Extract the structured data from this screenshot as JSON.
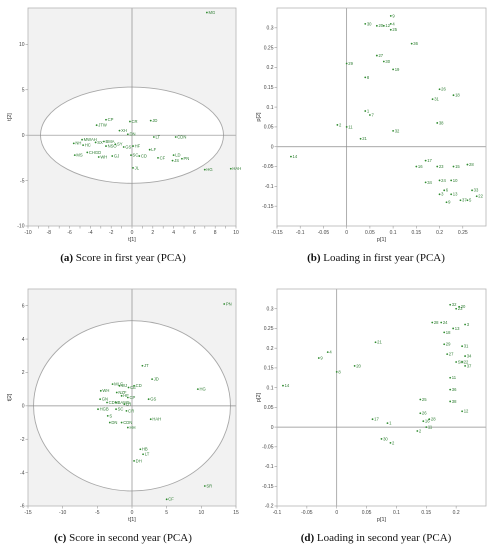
{
  "colors": {
    "point": "#2e8b2e",
    "label": "#2e7d32",
    "score_bg": "#f2f2f2",
    "ellipse_fill": "#ffffff",
    "ellipse_stroke": "#a8a8a8",
    "zero_line": "#8c8c8c",
    "frame": "#b5b5b5"
  },
  "captions": [
    {
      "letter": "(a)",
      "text": "Score in first year (PCA)"
    },
    {
      "letter": "(b)",
      "text": "Loading in first year (PCA)"
    },
    {
      "letter": "(c)",
      "text": "Score in second year (PCA)"
    },
    {
      "letter": "(d)",
      "text": "Loading in second year (PCA)"
    }
  ],
  "chart_data": [
    {
      "type": "scatter",
      "title": "",
      "xlabel": "t[1]",
      "ylabel": "t[2]",
      "xlim": [
        -10,
        10
      ],
      "ylim": [
        -10,
        14
      ],
      "xticks": [
        -10,
        -9,
        -8,
        -7,
        -6,
        -5,
        -4,
        -3,
        -2,
        -1,
        0,
        1,
        2,
        3,
        4,
        5,
        6,
        7,
        8,
        9,
        10
      ],
      "xtick_labels": [
        "-10",
        "",
        "-8",
        "",
        "-6",
        "",
        "-4",
        "",
        "-2",
        "",
        "0",
        "",
        "2",
        "",
        "4",
        "",
        "6",
        "",
        "8",
        "",
        "10"
      ],
      "yticks": [
        -10,
        -5,
        0,
        5,
        10
      ],
      "ellipse": {
        "cx": 0,
        "cy": 0,
        "rx": 8.8,
        "ry": 5.3
      },
      "shaded_background": true,
      "points": [
        {
          "x": 7.2,
          "y": 13.5,
          "label": "MG"
        },
        {
          "x": -2.5,
          "y": 1.7,
          "label": "CP"
        },
        {
          "x": -0.2,
          "y": 1.5,
          "label": "CR"
        },
        {
          "x": 1.8,
          "y": 1.6,
          "label": "JD"
        },
        {
          "x": -3.4,
          "y": 1.1,
          "label": "JTW"
        },
        {
          "x": -1.2,
          "y": 0.5,
          "label": "XH"
        },
        {
          "x": -0.4,
          "y": 0.1,
          "label": "DN"
        },
        {
          "x": -4.8,
          "y": -0.5,
          "label": "MWAH"
        },
        {
          "x": -5.6,
          "y": -0.9,
          "label": "NH"
        },
        {
          "x": -4.7,
          "y": -1.1,
          "label": "HC"
        },
        {
          "x": -3.5,
          "y": -0.8,
          "label": "SX"
        },
        {
          "x": -2.7,
          "y": -0.7,
          "label": "BMA"
        },
        {
          "x": -2.5,
          "y": -1.2,
          "label": "NSO"
        },
        {
          "x": -1.6,
          "y": -1.0,
          "label": "SY"
        },
        {
          "x": -0.8,
          "y": -1.3,
          "label": "GS"
        },
        {
          "x": 0.1,
          "y": -1.2,
          "label": "HF"
        },
        {
          "x": 2.1,
          "y": -0.2,
          "label": "LT"
        },
        {
          "x": 4.2,
          "y": -0.2,
          "label": "CDN"
        },
        {
          "x": 1.7,
          "y": -1.6,
          "label": "LF"
        },
        {
          "x": -5.5,
          "y": -2.2,
          "label": "MS"
        },
        {
          "x": -4.3,
          "y": -1.9,
          "label": "CHGD"
        },
        {
          "x": -3.2,
          "y": -2.4,
          "label": "WH"
        },
        {
          "x": -1.9,
          "y": -2.3,
          "label": "GJ"
        },
        {
          "x": -0.1,
          "y": -2.2,
          "label": "SC"
        },
        {
          "x": 0.7,
          "y": -2.3,
          "label": "CD"
        },
        {
          "x": 2.5,
          "y": -2.5,
          "label": "CF"
        },
        {
          "x": 4.0,
          "y": -2.2,
          "label": "LD"
        },
        {
          "x": 4.8,
          "y": -2.6,
          "label": "PN"
        },
        {
          "x": 3.9,
          "y": -2.8,
          "label": "JS"
        },
        {
          "x": 0.1,
          "y": -3.6,
          "label": "JL"
        },
        {
          "x": 7.0,
          "y": -3.8,
          "label": "HG"
        },
        {
          "x": 9.5,
          "y": -3.7,
          "label": "HAH"
        }
      ]
    },
    {
      "type": "scatter",
      "title": "",
      "xlabel": "p[1]",
      "ylabel": "p[2]",
      "xlim": [
        -0.15,
        0.3
      ],
      "ylim": [
        -0.2,
        0.35
      ],
      "xticks": [
        -0.15,
        -0.1,
        -0.05,
        0,
        0.05,
        0.1,
        0.15,
        0.2,
        0.25
      ],
      "xtick_labels": [
        "-0.15",
        "-0.1",
        "-0.05",
        "0",
        "0.05",
        "0.1",
        "0.15",
        "0.2",
        "0.25"
      ],
      "yticks": [
        -0.15,
        -0.1,
        -0.05,
        0,
        0.05,
        0.1,
        0.15,
        0.2,
        0.25,
        0.3
      ],
      "ellipse": null,
      "shaded_background": false,
      "points": [
        {
          "x": 0.095,
          "y": 0.33,
          "label": "9"
        },
        {
          "x": 0.04,
          "y": 0.31,
          "label": "30"
        },
        {
          "x": 0.065,
          "y": 0.305,
          "label": "20"
        },
        {
          "x": 0.08,
          "y": 0.305,
          "label": "12"
        },
        {
          "x": 0.095,
          "y": 0.31,
          "label": "4"
        },
        {
          "x": 0.095,
          "y": 0.295,
          "label": "25"
        },
        {
          "x": 0.14,
          "y": 0.26,
          "label": "36"
        },
        {
          "x": 0.065,
          "y": 0.23,
          "label": "27"
        },
        {
          "x": 0.08,
          "y": 0.215,
          "label": "30"
        },
        {
          "x": 0.0,
          "y": 0.21,
          "label": "29"
        },
        {
          "x": 0.1,
          "y": 0.195,
          "label": "19"
        },
        {
          "x": 0.04,
          "y": 0.175,
          "label": "8"
        },
        {
          "x": 0.2,
          "y": 0.145,
          "label": "26"
        },
        {
          "x": 0.23,
          "y": 0.13,
          "label": "18"
        },
        {
          "x": 0.185,
          "y": 0.12,
          "label": "31"
        },
        {
          "x": 0.04,
          "y": 0.09,
          "label": "1"
        },
        {
          "x": 0.05,
          "y": 0.08,
          "label": "7"
        },
        {
          "x": -0.02,
          "y": 0.055,
          "label": "2"
        },
        {
          "x": 0.0,
          "y": 0.05,
          "label": "11"
        },
        {
          "x": 0.195,
          "y": 0.06,
          "label": "38"
        },
        {
          "x": 0.1,
          "y": 0.04,
          "label": "32"
        },
        {
          "x": 0.03,
          "y": 0.02,
          "label": "21"
        },
        {
          "x": -0.12,
          "y": -0.025,
          "label": "14"
        },
        {
          "x": 0.17,
          "y": -0.035,
          "label": "17"
        },
        {
          "x": 0.15,
          "y": -0.05,
          "label": "16"
        },
        {
          "x": 0.195,
          "y": -0.05,
          "label": "23"
        },
        {
          "x": 0.23,
          "y": -0.05,
          "label": "15"
        },
        {
          "x": 0.26,
          "y": -0.045,
          "label": "28"
        },
        {
          "x": 0.2,
          "y": -0.085,
          "label": "24"
        },
        {
          "x": 0.225,
          "y": -0.085,
          "label": "10"
        },
        {
          "x": 0.17,
          "y": -0.09,
          "label": "34"
        },
        {
          "x": 0.21,
          "y": -0.11,
          "label": "6"
        },
        {
          "x": 0.2,
          "y": -0.12,
          "label": "3"
        },
        {
          "x": 0.225,
          "y": -0.12,
          "label": "13"
        },
        {
          "x": 0.27,
          "y": -0.11,
          "label": "33"
        },
        {
          "x": 0.28,
          "y": -0.125,
          "label": "22"
        },
        {
          "x": 0.245,
          "y": -0.135,
          "label": "37"
        },
        {
          "x": 0.26,
          "y": -0.135,
          "label": "5"
        },
        {
          "x": 0.215,
          "y": -0.14,
          "label": "9"
        }
      ]
    },
    {
      "type": "scatter",
      "title": "",
      "xlabel": "t[1]",
      "ylabel": "t[2]",
      "xlim": [
        -15,
        15
      ],
      "ylim": [
        -6,
        7
      ],
      "xticks": [
        -15,
        -10,
        -5,
        0,
        5,
        10,
        15
      ],
      "xtick_labels": [
        "-15",
        "-10",
        "-5",
        "0",
        "5",
        "10",
        "15"
      ],
      "yticks": [
        -6,
        -4,
        -2,
        0,
        2,
        4,
        6
      ],
      "ellipse": {
        "cx": 0,
        "cy": 0,
        "rx": 14.2,
        "ry": 5.1
      },
      "shaded_background": true,
      "points": [
        {
          "x": 13.3,
          "y": 6.1,
          "label": "PN"
        },
        {
          "x": 1.5,
          "y": 2.4,
          "label": "JT"
        },
        {
          "x": 2.9,
          "y": 1.6,
          "label": "JD"
        },
        {
          "x": 9.5,
          "y": 1.0,
          "label": "HG"
        },
        {
          "x": -2.8,
          "y": 1.3,
          "label": "MLG"
        },
        {
          "x": -1.8,
          "y": 1.2,
          "label": "WJ"
        },
        {
          "x": -0.5,
          "y": 1.1,
          "label": "CE"
        },
        {
          "x": 0.3,
          "y": 1.2,
          "label": "CD"
        },
        {
          "x": -4.5,
          "y": 0.9,
          "label": "WH"
        },
        {
          "x": -2.2,
          "y": 0.8,
          "label": "NZF"
        },
        {
          "x": -1.5,
          "y": 0.6,
          "label": "HF"
        },
        {
          "x": -0.6,
          "y": 0.5,
          "label": "CP"
        },
        {
          "x": 2.4,
          "y": 0.4,
          "label": "GS"
        },
        {
          "x": -4.6,
          "y": 0.4,
          "label": "GN"
        },
        {
          "x": -3.6,
          "y": 0.2,
          "label": "CDN"
        },
        {
          "x": -2.3,
          "y": 0.2,
          "label": "BAMS"
        },
        {
          "x": -1.1,
          "y": 0.1,
          "label": "LR"
        },
        {
          "x": -4.9,
          "y": -0.2,
          "label": "HGB"
        },
        {
          "x": -2.3,
          "y": -0.2,
          "label": "SC"
        },
        {
          "x": -0.8,
          "y": -0.3,
          "label": "CR"
        },
        {
          "x": -3.5,
          "y": -0.6,
          "label": "S"
        },
        {
          "x": -3.2,
          "y": -1.0,
          "label": "DN"
        },
        {
          "x": -1.5,
          "y": -1.0,
          "label": "CDN"
        },
        {
          "x": 2.7,
          "y": -0.8,
          "label": "HAH"
        },
        {
          "x": -0.6,
          "y": -1.3,
          "label": "HH"
        },
        {
          "x": 1.2,
          "y": -2.6,
          "label": "HB"
        },
        {
          "x": 1.6,
          "y": -2.9,
          "label": "LT"
        },
        {
          "x": 0.3,
          "y": -3.3,
          "label": "DH"
        },
        {
          "x": 5.0,
          "y": -5.6,
          "label": "CF"
        },
        {
          "x": 10.5,
          "y": -4.8,
          "label": "SR"
        }
      ]
    },
    {
      "type": "scatter",
      "title": "",
      "xlabel": "p[1]",
      "ylabel": "p[2]",
      "xlim": [
        -0.1,
        0.25
      ],
      "ylim": [
        -0.2,
        0.35
      ],
      "xticks": [
        -0.1,
        -0.05,
        0,
        0.05,
        0.1,
        0.15,
        0.2
      ],
      "xtick_labels": [
        "-0.1",
        "-0.05",
        "0",
        "0.05",
        "0.1",
        "0.15",
        "0.2"
      ],
      "yticks": [
        -0.2,
        -0.15,
        -0.1,
        -0.05,
        0,
        0.05,
        0.1,
        0.15,
        0.2,
        0.25,
        0.3
      ],
      "ellipse": null,
      "shaded_background": false,
      "points": [
        {
          "x": 0.19,
          "y": 0.31,
          "label": "32"
        },
        {
          "x": 0.2,
          "y": 0.3,
          "label": "23"
        },
        {
          "x": 0.205,
          "y": 0.305,
          "label": "20"
        },
        {
          "x": 0.215,
          "y": 0.26,
          "label": "3"
        },
        {
          "x": 0.16,
          "y": 0.265,
          "label": "28"
        },
        {
          "x": 0.175,
          "y": 0.265,
          "label": "24"
        },
        {
          "x": 0.195,
          "y": 0.25,
          "label": "13"
        },
        {
          "x": 0.18,
          "y": 0.24,
          "label": "18"
        },
        {
          "x": 0.065,
          "y": 0.215,
          "label": "21"
        },
        {
          "x": 0.18,
          "y": 0.21,
          "label": "29"
        },
        {
          "x": 0.21,
          "y": 0.205,
          "label": "31"
        },
        {
          "x": -0.015,
          "y": 0.19,
          "label": "4"
        },
        {
          "x": -0.03,
          "y": 0.175,
          "label": "9"
        },
        {
          "x": 0.185,
          "y": 0.185,
          "label": "27"
        },
        {
          "x": 0.215,
          "y": 0.18,
          "label": "34"
        },
        {
          "x": 0.21,
          "y": 0.165,
          "label": "22"
        },
        {
          "x": 0.2,
          "y": 0.165,
          "label": "SH"
        },
        {
          "x": 0.215,
          "y": 0.155,
          "label": "37"
        },
        {
          "x": 0.0,
          "y": 0.14,
          "label": "8"
        },
        {
          "x": 0.03,
          "y": 0.155,
          "label": "20"
        },
        {
          "x": 0.19,
          "y": 0.125,
          "label": "11"
        },
        {
          "x": -0.09,
          "y": 0.105,
          "label": "14"
        },
        {
          "x": 0.19,
          "y": 0.095,
          "label": "36"
        },
        {
          "x": 0.14,
          "y": 0.07,
          "label": "25"
        },
        {
          "x": 0.19,
          "y": 0.065,
          "label": "38"
        },
        {
          "x": 0.21,
          "y": 0.04,
          "label": "12"
        },
        {
          "x": 0.06,
          "y": 0.02,
          "label": "17"
        },
        {
          "x": 0.085,
          "y": 0.01,
          "label": "1"
        },
        {
          "x": 0.145,
          "y": 0.015,
          "label": "16"
        },
        {
          "x": 0.155,
          "y": 0.02,
          "label": "28"
        },
        {
          "x": 0.15,
          "y": 0.0,
          "label": "11"
        },
        {
          "x": 0.14,
          "y": 0.035,
          "label": "26"
        },
        {
          "x": 0.135,
          "y": -0.01,
          "label": "2"
        },
        {
          "x": 0.075,
          "y": -0.03,
          "label": "30"
        },
        {
          "x": 0.09,
          "y": -0.04,
          "label": "2"
        }
      ]
    }
  ]
}
